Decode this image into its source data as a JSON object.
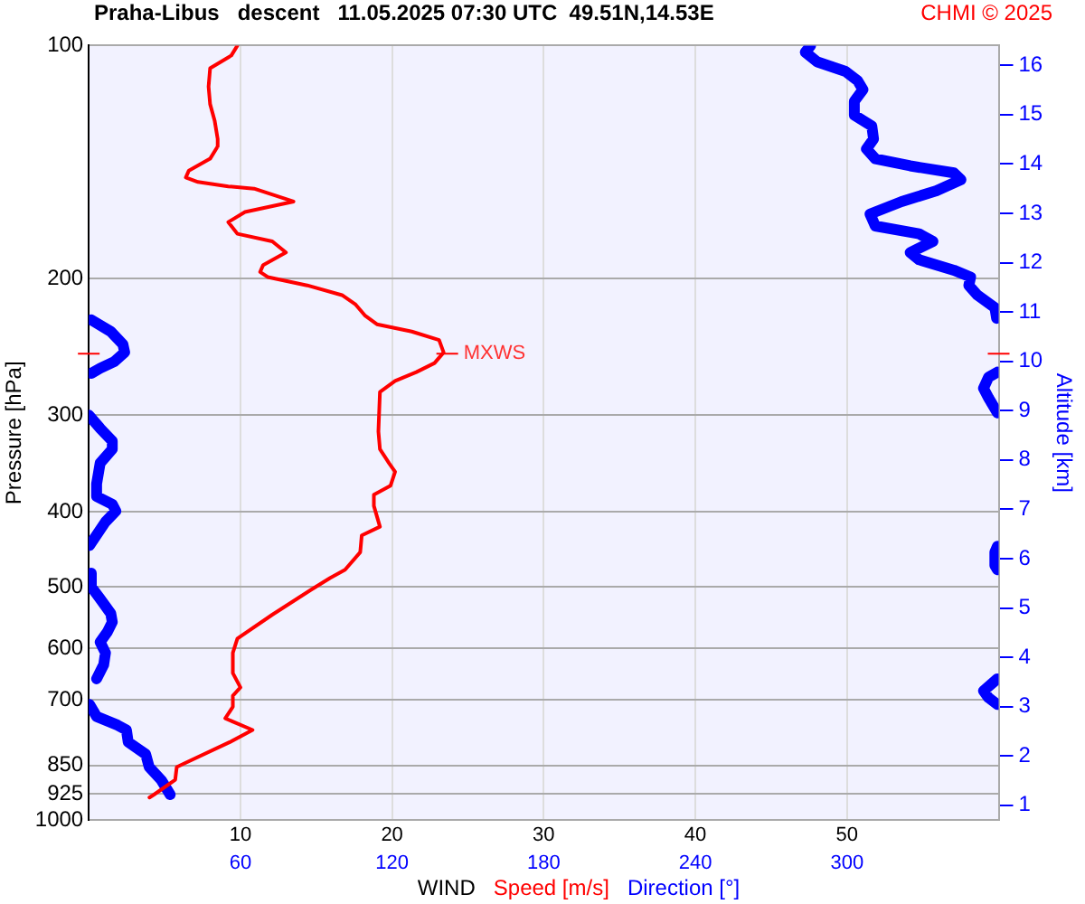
{
  "chart_data": {
    "type": "line",
    "title": "Praha-Libus   descent   11.05.2025 07:30 UTC  49.51N,14.53E",
    "xlabel": "WIND",
    "ylabel": "Pressure [hPa]",
    "y2label": "Altitude [km]",
    "annotations": [
      "CHMI © 2025",
      {
        "text": "MXWS",
        "x": 23.4,
        "y": 250
      }
    ],
    "orientation": "horizontal",
    "log": "y",
    "grid": true,
    "legend": "bottom",
    "line_style": "solid",
    "xlim": [
      0,
      60
    ],
    "xticks": [
      10,
      20,
      30,
      40,
      50
    ],
    "x2lim": [
      0,
      360
    ],
    "x2ticks": [
      60,
      120,
      180,
      240,
      300
    ],
    "ylim": [
      1000,
      100
    ],
    "yticks": [
      100,
      200,
      300,
      400,
      500,
      600,
      700,
      850,
      925,
      1000
    ],
    "y2lim": [
      0.7,
      16.4
    ],
    "y2ticks": [
      1,
      2,
      3,
      4,
      5,
      6,
      7,
      8,
      9,
      10,
      11,
      12,
      13,
      14,
      15,
      16
    ],
    "series": [
      {
        "name": "Speed [m/s]",
        "color": "#ff0000",
        "values": [
          9.8,
          9.4,
          8.0,
          7.9,
          8.0,
          8.3,
          8.5,
          8.5,
          8.0,
          6.6,
          6.4,
          7.2,
          9.2,
          10.9,
          13.5,
          10.3,
          9.2,
          9.8,
          12.1,
          13.0,
          11.5,
          11.3,
          11.8,
          14.4,
          16.7,
          17.6,
          18.2,
          19.0,
          21.3,
          23.1,
          23.4,
          22.8,
          21.6,
          20.2,
          19.2,
          19.1,
          19.2,
          19.8,
          20.2,
          19.9,
          18.8,
          18.8,
          19.2,
          18.0,
          17.9,
          16.9,
          15.9,
          14.6,
          12.1,
          9.8,
          9.5,
          9.5,
          10.0,
          9.5,
          9.5,
          9.0,
          10.8,
          9.3,
          6.3,
          5.8,
          5.7,
          4.3,
          4.0
        ],
        "x": [
          100,
          103,
          107,
          113,
          119,
          125,
          132,
          135,
          140,
          145,
          148,
          150,
          152,
          153,
          159,
          164,
          169,
          175,
          179,
          185,
          192,
          196,
          199,
          204,
          210,
          216,
          223,
          229,
          234,
          240,
          249,
          257,
          264,
          271,
          280,
          315,
          332,
          346,
          355,
          370,
          380,
          393,
          418,
          429,
          451,
          475,
          487,
          505,
          543,
          583,
          608,
          646,
          674,
          691,
          714,
          739,
          765,
          793,
          845,
          854,
          887,
          927,
          935
        ]
      },
      {
        "name": "Direction [°]",
        "color": "#0000ff",
        "axis": "x2",
        "values": [
          285.6,
          283.5,
          288.3,
          299.4,
          304.2,
          306.3,
          302.9,
          302.9,
          309.8,
          310.5,
          307.7,
          311.2,
          325.0,
          342.3,
          345.1,
          335.4,
          321.6,
          309.1,
          311.2,
          328.5,
          334.0,
          325.0,
          328.5,
          342.3,
          348.9,
          348.2,
          351.6,
          358.5,
          359.2,
          null,
          1.0,
          8.7,
          13.5,
          14.2,
          10.0,
          4.5,
          1.0,
          null,
          359.5,
          356.0,
          354.0,
          356.0,
          359.5,
          null,
          0,
          4.5,
          9.3,
          9.3,
          4.5,
          3.1,
          3.1,
          9.3,
          10.7,
          6.6,
          0.3,
          null,
          359.5,
          358.5,
          358.5,
          359.5,
          null,
          1.0,
          1.0,
          4.5,
          8.7,
          9.3,
          7.3,
          4.5,
          6.6,
          5.9,
          3.1,
          null,
          359.5,
          354.0,
          356.0,
          359.5,
          null,
          0.3,
          3.1,
          11.4,
          14.9,
          15.6,
          22.5,
          23.9,
          28.7,
          32.2
        ],
        "x": [
          100,
          102,
          105,
          108,
          111,
          114,
          118,
          123,
          127,
          132,
          136,
          140,
          143,
          146,
          149,
          154,
          159,
          165,
          171,
          175,
          179,
          185,
          189,
          195,
          199,
          204,
          210,
          218,
          225,
          null,
          226,
          234,
          243,
          249,
          256,
          261,
          265,
          null,
          264,
          268,
          277,
          285,
          298,
          null,
          300,
          312,
          324,
          332,
          346,
          368,
          382,
          391,
          399,
          412,
          442,
          null,
          443,
          451,
          469,
          475,
          null,
          480,
          500,
          518,
          541,
          555,
          572,
          589,
          608,
          630,
          657,
          null,
          657,
          681,
          695,
          709,
          null,
          709,
          735,
          754,
          765,
          793,
          822,
          854,
          888,
          927
        ]
      }
    ]
  }
}
